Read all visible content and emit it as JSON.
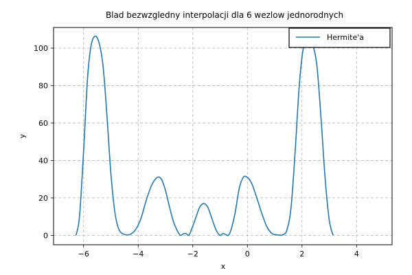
{
  "chart_data": {
    "type": "line",
    "title": "Blad bezwzgledny interpolacji dla 6 wezlow jednorodnych",
    "xlabel": "x",
    "ylabel": "y",
    "xlim": [
      -7.1,
      5.3
    ],
    "ylim": [
      -5,
      111
    ],
    "xticks": [
      -6,
      -4,
      -2,
      0,
      2,
      4
    ],
    "yticks": [
      0,
      20,
      40,
      60,
      80,
      100
    ],
    "xtick_labels": [
      "−6",
      "−4",
      "−2",
      "0",
      "2",
      "4"
    ],
    "ytick_labels": [
      "0",
      "20",
      "40",
      "60",
      "80",
      "100"
    ],
    "grid": true,
    "legend_position": "top-right",
    "series": [
      {
        "name": "Hermite'a",
        "color": "#1f77b4",
        "x": [
          -6.28,
          -6.15,
          -6.0,
          -5.85,
          -5.7,
          -5.5,
          -5.3,
          -5.15,
          -5.0,
          -4.85,
          -4.7,
          -4.5,
          -4.3,
          -4.1,
          -3.9,
          -3.7,
          -3.5,
          -3.3,
          -3.15,
          -3.0,
          -2.85,
          -2.7,
          -2.55,
          -2.45,
          -2.35,
          -2.25,
          -2.15,
          -2.05,
          -1.9,
          -1.75,
          -1.6,
          -1.45,
          -1.3,
          -1.15,
          -1.0,
          -0.9,
          -0.8,
          -0.7,
          -0.6,
          -0.45,
          -0.3,
          -0.15,
          0.0,
          0.15,
          0.3,
          0.5,
          0.7,
          0.9,
          1.1,
          1.3,
          1.45,
          1.6,
          1.75,
          1.9,
          2.05,
          2.2,
          2.4,
          2.55,
          2.7,
          2.85,
          3.0,
          3.14
        ],
        "y": [
          0,
          10,
          45,
          85,
          103,
          105.5,
          92,
          65,
          33,
          12,
          3,
          0.5,
          0.5,
          3,
          9,
          19,
          27,
          31,
          30,
          24,
          15,
          7,
          2,
          0,
          0.8,
          1,
          0,
          3,
          9,
          15,
          17,
          15,
          9,
          3,
          0,
          1,
          0.5,
          0,
          3,
          12,
          25,
          31,
          31,
          28,
          22,
          13,
          5,
          1,
          0.3,
          0.3,
          3,
          15,
          45,
          80,
          100,
          102,
          101,
          90,
          62,
          30,
          8,
          0
        ]
      }
    ]
  }
}
